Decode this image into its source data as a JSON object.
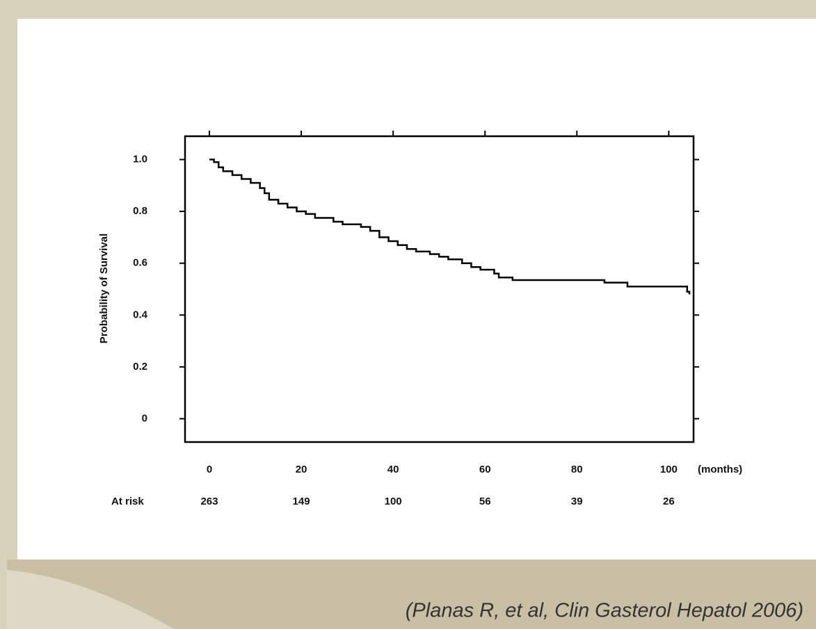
{
  "chart_data": {
    "type": "step",
    "y_label": "Probability of Survival",
    "x_label": "(months)",
    "x": [
      0,
      1,
      2,
      3,
      5,
      7,
      9,
      11,
      12,
      13,
      15,
      17,
      19,
      21,
      23,
      27,
      29,
      33,
      35,
      37,
      39,
      41,
      43,
      45,
      48,
      50,
      52,
      55,
      57,
      59,
      62,
      63,
      66,
      86,
      91,
      104,
      104.5
    ],
    "series": [
      {
        "color": "#000000",
        "values": [
          1.0,
          0.99,
          0.97,
          0.955,
          0.94,
          0.925,
          0.91,
          0.89,
          0.87,
          0.845,
          0.83,
          0.815,
          0.8,
          0.79,
          0.775,
          0.76,
          0.75,
          0.74,
          0.725,
          0.7,
          0.685,
          0.67,
          0.655,
          0.645,
          0.635,
          0.625,
          0.615,
          0.6,
          0.585,
          0.575,
          0.56,
          0.545,
          0.535,
          0.525,
          0.51,
          0.49,
          0.48
        ]
      }
    ],
    "xlim": [
      -5.3,
      105.4
    ],
    "ylim": [
      -0.09,
      1.09
    ],
    "xticks": [
      0,
      20,
      40,
      60,
      80,
      100
    ],
    "yticks": [
      0,
      {
        "value": 0.2,
        "label": "0.2"
      },
      {
        "value": 0.4,
        "label": "0.4"
      },
      {
        "value": 0.6,
        "label": "0.6"
      },
      {
        "value": 0.8,
        "label": "0.8"
      },
      {
        "value": 1.0,
        "label": "1.0"
      }
    ],
    "at_risk": {
      "label": "At risk",
      "values": [
        263,
        149,
        100,
        56,
        39,
        26
      ]
    },
    "citation": "(Planas R, et al, Clin Gasterol Hepatol 2006)"
  }
}
